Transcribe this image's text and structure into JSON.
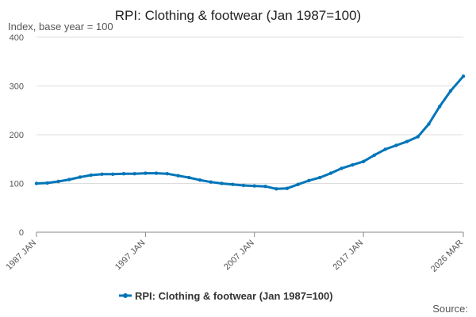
{
  "chart_data": {
    "type": "line",
    "title": "RPI: Clothing & footwear (Jan 1987=100)",
    "ylabel": "Index, base year = 100",
    "xlabel": "",
    "ylim": [
      0,
      400
    ],
    "yticks": [
      0,
      100,
      200,
      300,
      400
    ],
    "xrange": [
      "1987-01",
      "2026-03"
    ],
    "xticks": [
      {
        "date": "1987-01",
        "label": "1987 JAN"
      },
      {
        "date": "1997-01",
        "label": "1997 JAN"
      },
      {
        "date": "2007-01",
        "label": "2007 JAN"
      },
      {
        "date": "2017-01",
        "label": "2017 JAN"
      },
      {
        "date": "2026-03",
        "label": "2026 MAR"
      }
    ],
    "grid": true,
    "legend_position": "bottom",
    "series": [
      {
        "name": "RPI: Clothing & footwear (Jan 1987=100)",
        "color": "#0075b8",
        "points": [
          [
            "1987-01",
            100
          ],
          [
            "1988-01",
            101
          ],
          [
            "1989-01",
            104
          ],
          [
            "1990-01",
            108
          ],
          [
            "1991-01",
            113
          ],
          [
            "1992-01",
            117
          ],
          [
            "1993-01",
            119
          ],
          [
            "1994-01",
            119
          ],
          [
            "1995-01",
            120
          ],
          [
            "1996-01",
            120
          ],
          [
            "1997-01",
            121
          ],
          [
            "1998-01",
            121
          ],
          [
            "1999-01",
            120
          ],
          [
            "2000-01",
            116
          ],
          [
            "2001-01",
            112
          ],
          [
            "2002-01",
            107
          ],
          [
            "2003-01",
            103
          ],
          [
            "2004-01",
            100
          ],
          [
            "2005-01",
            98
          ],
          [
            "2006-01",
            96
          ],
          [
            "2007-01",
            95
          ],
          [
            "2008-01",
            94
          ],
          [
            "2009-01",
            89
          ],
          [
            "2010-01",
            90
          ],
          [
            "2011-01",
            98
          ],
          [
            "2012-01",
            106
          ],
          [
            "2013-01",
            112
          ],
          [
            "2014-01",
            121
          ],
          [
            "2015-01",
            131
          ],
          [
            "2016-01",
            138
          ],
          [
            "2017-01",
            145
          ],
          [
            "2018-01",
            158
          ],
          [
            "2019-01",
            170
          ],
          [
            "2020-01",
            178
          ],
          [
            "2021-01",
            186
          ],
          [
            "2022-01",
            196
          ],
          [
            "2023-01",
            222
          ],
          [
            "2024-01",
            258
          ],
          [
            "2025-01",
            290
          ],
          [
            "2026-03",
            320
          ]
        ]
      }
    ],
    "source_label": "Source:"
  }
}
